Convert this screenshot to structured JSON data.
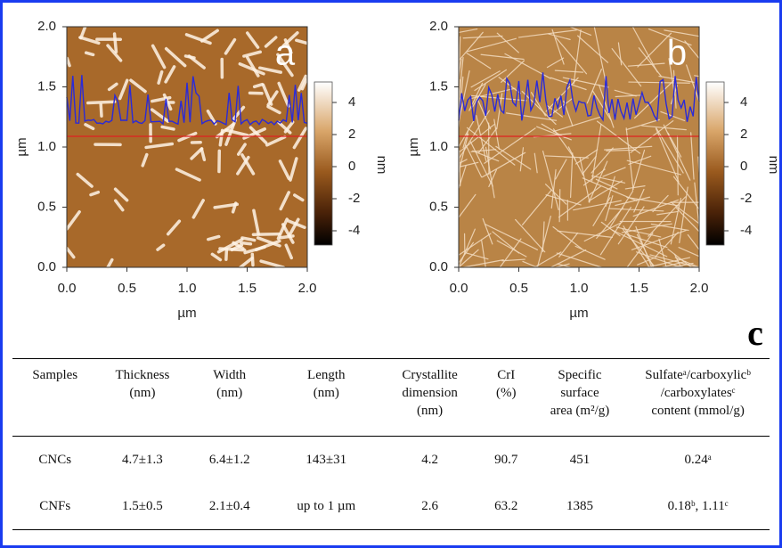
{
  "panels": [
    {
      "label": "a",
      "yticks": [
        "0.0",
        "0.5",
        "1.0",
        "1.5",
        "2.0"
      ],
      "xticks": [
        "0.0",
        "0.5",
        "1.0",
        "1.5",
        "2.0"
      ],
      "x_axis_label": "µm",
      "y_axis_label": "µm",
      "colorbar_ticks": [
        "4",
        "2",
        "0",
        "-2",
        "-4"
      ],
      "colorbar_label": "nm"
    },
    {
      "label": "b",
      "yticks": [
        "0.0",
        "0.5",
        "1.0",
        "1.5",
        "2.0"
      ],
      "xticks": [
        "0.0",
        "0.5",
        "1.0",
        "1.5",
        "2.0"
      ],
      "x_axis_label": "µm",
      "y_axis_label": "µm",
      "colorbar_ticks": [
        "4",
        "2",
        "0",
        "-2",
        "-4"
      ],
      "colorbar_label": "nm"
    }
  ],
  "table_label": "c",
  "table": {
    "header": [
      [
        "Samples"
      ],
      [
        "Thickness",
        "(nm)"
      ],
      [
        "Width",
        "(nm)"
      ],
      [
        "Length",
        "(nm)"
      ],
      [
        "Crystallite",
        "dimension",
        "(nm)"
      ],
      [
        "CrI",
        "(%)"
      ],
      [
        "Specific",
        "surface",
        "area (m²/g)"
      ],
      [
        "Sulfateᵃ/carboxylicᵇ",
        "/carboxylatesᶜ",
        "content (mmol/g)"
      ]
    ],
    "rows": [
      [
        "CNCs",
        "4.7±1.3",
        "6.4±1.2",
        "143±31",
        "4.2",
        "90.7",
        "451",
        "0.24ᵃ"
      ],
      [
        "CNFs",
        "1.5±0.5",
        "2.1±0.4",
        "up to 1 µm",
        "2.6",
        "63.2",
        "1385",
        "0.18ᵇ, 1.11ᶜ"
      ]
    ]
  }
}
